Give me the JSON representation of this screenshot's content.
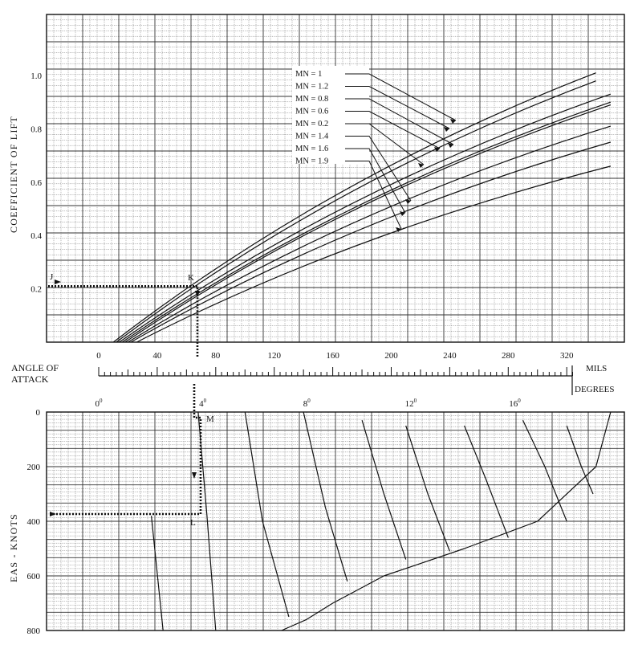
{
  "chart_data": [
    {
      "type": "line",
      "title": "",
      "ylabel": "COEFFICIENT OF LIFT",
      "xlabel": "",
      "xlim": [
        0,
        350
      ],
      "ylim": [
        0,
        1.2
      ],
      "grid": true,
      "y_ticks": [
        "0.2",
        "0.4",
        "0.6",
        "0.8",
        "1.0"
      ],
      "legend_entries": [
        "MN = 1",
        "MN = 1.2",
        "MN = 0.8",
        "MN = 0.6",
        "MN = 0.2",
        "MN = 1.4",
        "MN = 1.6",
        "MN = 1.9"
      ],
      "series": [
        {
          "name": "MN = 1",
          "x": [
            10,
            340
          ],
          "y": [
            0,
            1.01
          ]
        },
        {
          "name": "MN = 1.2",
          "x": [
            12,
            340
          ],
          "y": [
            0,
            0.98
          ]
        },
        {
          "name": "MN = 0.8",
          "x": [
            14,
            350
          ],
          "y": [
            0,
            0.93
          ]
        },
        {
          "name": "MN = 0.6",
          "x": [
            16,
            350
          ],
          "y": [
            0,
            0.9
          ]
        },
        {
          "name": "MN = 0.2",
          "x": [
            18,
            350
          ],
          "y": [
            0,
            0.89
          ]
        },
        {
          "name": "MN = 1.4",
          "x": [
            20,
            350
          ],
          "y": [
            0,
            0.81
          ]
        },
        {
          "name": "MN = 1.6",
          "x": [
            22,
            350
          ],
          "y": [
            0,
            0.75
          ]
        },
        {
          "name": "MN = 1.9",
          "x": [
            26,
            350
          ],
          "y": [
            0,
            0.66
          ]
        }
      ],
      "annotations": [
        {
          "text": "J",
          "x": -30,
          "y": 0.21
        },
        {
          "text": "K",
          "x": 65,
          "y": 0.21
        }
      ]
    },
    {
      "type": "axis",
      "title": "",
      "axis_label": "ANGLE OF ATTACK",
      "mils_label": "MILS",
      "degrees_label": "DEGREES",
      "mils_ticks": [
        "0",
        "40",
        "80",
        "120",
        "160",
        "200",
        "240",
        "280",
        "320"
      ],
      "degree_ticks": [
        "0",
        "4",
        "8",
        "12",
        "16"
      ],
      "degree_symbol": "0"
    },
    {
      "type": "line",
      "title": "",
      "ylabel": "EAS - KNOTS",
      "xlabel": "",
      "xlim": [
        0,
        350
      ],
      "ylim": [
        800,
        0
      ],
      "grid": true,
      "y_ticks": [
        "0",
        "200",
        "400",
        "600",
        "800"
      ],
      "series": [
        {
          "name": "",
          "x": [
            125,
            142,
            160,
            195,
            250,
            300,
            340,
            350
          ],
          "y": [
            800,
            760,
            700,
            600,
            500,
            400,
            200,
            0
          ]
        },
        {
          "name": "",
          "x": [
            36,
            44
          ],
          "y": [
            380,
            800
          ]
        },
        {
          "name": "",
          "x": [
            68,
            74,
            80
          ],
          "y": [
            0,
            380,
            800
          ]
        },
        {
          "name": "",
          "x": [
            100,
            112,
            130
          ],
          "y": [
            0,
            400,
            750
          ]
        },
        {
          "name": "",
          "x": [
            140,
            155,
            170
          ],
          "y": [
            0,
            350,
            620
          ]
        },
        {
          "name": "",
          "x": [
            180,
            195,
            210
          ],
          "y": [
            30,
            300,
            540
          ]
        },
        {
          "name": "",
          "x": [
            210,
            225,
            240
          ],
          "y": [
            50,
            300,
            510
          ]
        },
        {
          "name": "",
          "x": [
            250,
            265,
            280
          ],
          "y": [
            50,
            250,
            460
          ]
        },
        {
          "name": "",
          "x": [
            290,
            305,
            320
          ],
          "y": [
            30,
            200,
            400
          ]
        },
        {
          "name": "",
          "x": [
            320,
            330,
            338
          ],
          "y": [
            50,
            200,
            300
          ]
        }
      ],
      "annotations": [
        {
          "text": "M",
          "x": 67,
          "y": 30
        },
        {
          "text": "L",
          "x": 64,
          "y": 400
        }
      ]
    }
  ]
}
